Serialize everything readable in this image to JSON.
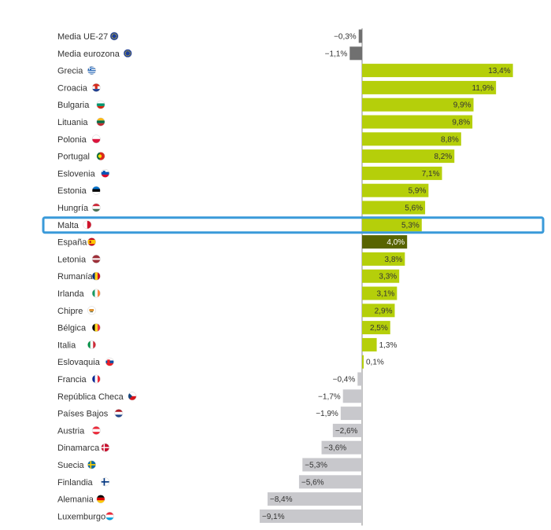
{
  "chart_data": {
    "type": "bar",
    "orientation": "horizontal",
    "categories": [
      "Media UE-27",
      "Media eurozona",
      "Grecia",
      "Croacia",
      "Bulgaria",
      "Lituania",
      "Polonia",
      "Portugal",
      "Eslovenia",
      "Estonia",
      "Hungría",
      "Malta",
      "España",
      "Letonia",
      "Rumanía",
      "Irlanda",
      "Chipre",
      "Bélgica",
      "Italia",
      "Eslovaquia",
      "Francia",
      "República Checa",
      "Países Bajos",
      "Austria",
      "Dinamarca",
      "Suecia",
      "Finlandia",
      "Alemania",
      "Luxemburgo"
    ],
    "values": [
      -0.3,
      -1.1,
      13.4,
      11.9,
      9.9,
      9.8,
      8.8,
      8.2,
      7.1,
      5.9,
      5.6,
      5.3,
      4.0,
      3.8,
      3.3,
      3.1,
      2.9,
      2.5,
      1.3,
      0.1,
      -0.4,
      -1.7,
      -1.9,
      -2.6,
      -3.6,
      -5.3,
      -5.6,
      -8.4,
      -9.1
    ],
    "value_labels": [
      "−0,3%",
      "−1,1%",
      "13,4%",
      "11,9%",
      "9,9%",
      "9,8%",
      "8,8%",
      "8,2%",
      "7,1%",
      "5,9%",
      "5,6%",
      "5,3%",
      "4,0%",
      "3,8%",
      "3,3%",
      "3,1%",
      "2,9%",
      "2,5%",
      "1,3%",
      "0,1%",
      "−0,4%",
      "−1,7%",
      "−1,9%",
      "−2,6%",
      "−3,6%",
      "−5,3%",
      "−5,6%",
      "−8,4%",
      "−9,1%"
    ],
    "flags": [
      "eu",
      "eu",
      "gr",
      "hr",
      "bg",
      "lt",
      "pl",
      "pt",
      "si",
      "ee",
      "hu",
      "mt",
      "es",
      "lv",
      "ro",
      "ie",
      "cy",
      "be",
      "it",
      "sk",
      "fr",
      "cz",
      "nl",
      "at",
      "dk",
      "se",
      "fi",
      "de",
      "lu"
    ],
    "highlighted": "Malta",
    "emphasized": "España",
    "xlim": [
      -9.1,
      13.4
    ],
    "grid": false,
    "legend": "none",
    "title": "",
    "xlabel": "",
    "ylabel": "",
    "colors": {
      "positive": "#b5cf0a",
      "negative": "#c8c8cc",
      "average": "#707070",
      "emphasis": "#586400",
      "highlight_box": "#3a9ad9",
      "zero_line": "#888888",
      "text": "#333333"
    }
  }
}
